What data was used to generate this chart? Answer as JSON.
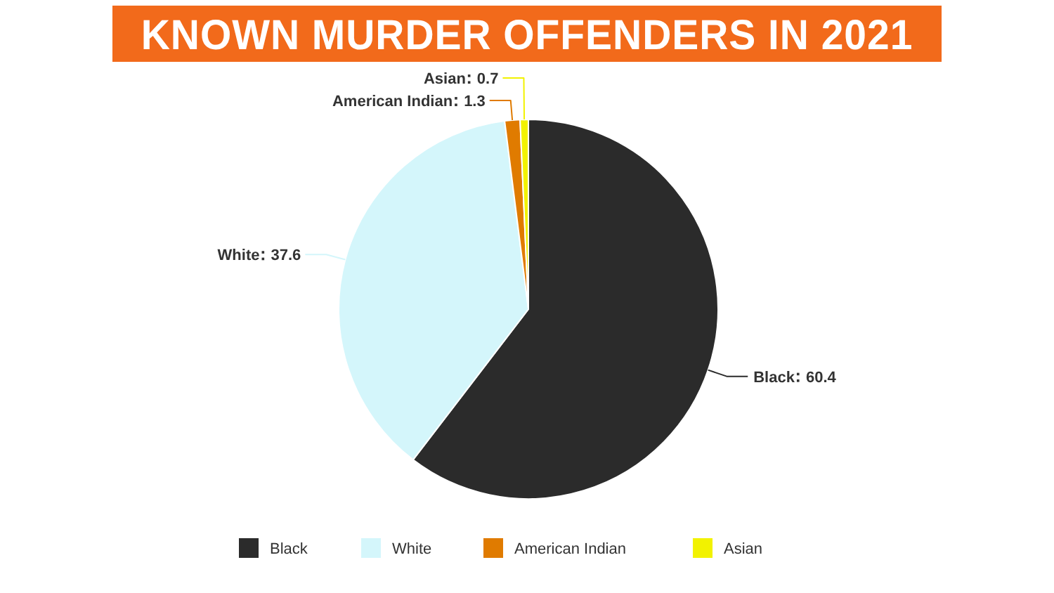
{
  "chart_data": {
    "type": "pie",
    "title": "KNOWN MURDER OFFENDERS IN 2021",
    "categories": [
      "Black",
      "White",
      "American Indian",
      "Asian"
    ],
    "values": [
      60.4,
      37.6,
      1.3,
      0.7
    ],
    "colors": [
      "#2b2b2b",
      "#d4f6fb",
      "#e07b00",
      "#f2f200"
    ],
    "data_labels": true,
    "legend": "bottom"
  }
}
